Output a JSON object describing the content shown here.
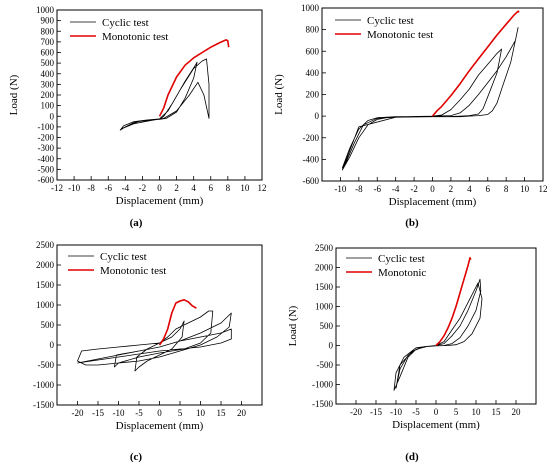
{
  "chart_data": [
    {
      "type": "line",
      "panel_label": "(a)",
      "xlabel": "Displacement (mm)",
      "ylabel": "Load (N)",
      "xlim": [
        -12,
        12
      ],
      "ylim": [
        -600,
        1000
      ],
      "xticks": [
        -12,
        -10,
        -8,
        -6,
        -4,
        -2,
        0,
        2,
        4,
        6,
        8,
        10,
        12
      ],
      "yticks": [
        -600,
        -500,
        -400,
        -300,
        -200,
        -100,
        0,
        100,
        200,
        300,
        400,
        500,
        600,
        700,
        800,
        900,
        1000
      ],
      "legend_position": "top-left",
      "series": [
        {
          "name": "Cyclic test",
          "color": "#000000",
          "width": 0.8,
          "x": [
            -4.5,
            -3.0,
            -2.0,
            -1.0,
            0.0,
            0.5,
            1.5,
            3.0,
            4.2,
            4.4,
            4.0,
            3.0,
            2.0,
            0.8,
            0.0,
            -1.0,
            -2.5,
            -4.0,
            -4.6,
            -4.2,
            -3.0,
            -1.5,
            0.0,
            1.0,
            2.5,
            4.0,
            5.0,
            5.5,
            5.8,
            5.8,
            5.2,
            4.5,
            3.5,
            2.0,
            0.5,
            -1.0,
            -3.0,
            -4.5
          ],
          "y": [
            -120,
            -60,
            -40,
            -35,
            -30,
            0,
            120,
            330,
            480,
            510,
            360,
            170,
            40,
            -20,
            -30,
            -35,
            -50,
            -100,
            -130,
            -90,
            -50,
            -35,
            -25,
            50,
            260,
            450,
            520,
            540,
            300,
            -20,
            200,
            320,
            200,
            50,
            -20,
            -40,
            -70,
            -120
          ]
        },
        {
          "name": "Monotonic test",
          "color": "#e00000",
          "width": 1.6,
          "x": [
            0.0,
            0.5,
            1.0,
            2.0,
            3.0,
            4.0,
            5.0,
            6.0,
            7.0,
            7.8,
            8.0,
            8.1
          ],
          "y": [
            0,
            80,
            200,
            370,
            480,
            550,
            600,
            650,
            690,
            720,
            710,
            650
          ]
        }
      ]
    },
    {
      "type": "line",
      "panel_label": "(b)",
      "xlabel": "Displacement (mm)",
      "ylabel": "Load (N)",
      "xlim": [
        -12,
        12
      ],
      "ylim": [
        -600,
        1000
      ],
      "xticks": [
        -10,
        -8,
        -6,
        -4,
        -2,
        0,
        2,
        4,
        6,
        8,
        10,
        12
      ],
      "yticks": [
        -600,
        -400,
        -200,
        0,
        200,
        400,
        600,
        800,
        1000
      ],
      "legend_position": "top-left",
      "series": [
        {
          "name": "Cyclic test",
          "color": "#000000",
          "width": 0.8,
          "x": [
            -9.8,
            -9.0,
            -8.0,
            -7.0,
            -6.0,
            -5.0,
            -3.0,
            0.0,
            2.0,
            3.0,
            4.0,
            5.0,
            6.0,
            7.0,
            8.0,
            9.0,
            9.3,
            9.2,
            8.5,
            7.5,
            7.0,
            6.5,
            6.0,
            5.0,
            4.0,
            3.0,
            2.0,
            0.0,
            -2.0,
            -4.0,
            -6.0,
            -7.5,
            -8.5,
            -9.5,
            -9.8,
            -9.0,
            -8.0,
            -7.0,
            -6.0,
            -4.0,
            -2.0,
            0.0,
            1.0,
            2.0,
            3.0,
            4.0,
            5.0,
            6.0,
            7.0,
            7.5,
            7.0,
            6.0,
            5.5,
            5.0,
            4.0,
            3.0,
            1.5,
            0.0,
            -4.0,
            -8.0,
            -9.8
          ],
          "y": [
            -500,
            -380,
            -200,
            -80,
            -30,
            -15,
            -5,
            0,
            5,
            30,
            100,
            200,
            310,
            420,
            550,
            700,
            820,
            780,
            500,
            250,
            120,
            50,
            15,
            5,
            0,
            -5,
            -5,
            -5,
            -5,
            -10,
            -20,
            -80,
            -250,
            -450,
            -480,
            -300,
            -120,
            -40,
            -15,
            -5,
            -5,
            0,
            10,
            60,
            150,
            250,
            380,
            480,
            580,
            620,
            400,
            180,
            70,
            20,
            5,
            0,
            -5,
            -5,
            -10,
            -100,
            -500
          ]
        },
        {
          "name": "Monotonic test",
          "color": "#e00000",
          "width": 1.6,
          "x": [
            0.0,
            0.5,
            1.0,
            2.0,
            3.0,
            4.0,
            5.0,
            6.0,
            7.0,
            8.0,
            8.8,
            9.3,
            9.4
          ],
          "y": [
            0,
            50,
            90,
            190,
            300,
            420,
            530,
            640,
            750,
            850,
            930,
            970,
            960
          ]
        }
      ]
    },
    {
      "type": "line",
      "panel_label": "(c)",
      "xlabel": "Displacement (mm)",
      "ylabel": "",
      "xlim": [
        -25,
        25
      ],
      "ylim": [
        -1500,
        2500
      ],
      "xticks": [
        -20,
        -15,
        -10,
        -5,
        0,
        5,
        10,
        15,
        20
      ],
      "yticks": [
        -1500,
        -1000,
        -500,
        0,
        500,
        1000,
        1500,
        2000,
        2500
      ],
      "legend_position": "top-left",
      "series": [
        {
          "name": "Cyclic test",
          "color": "#000000",
          "width": 0.8,
          "x": [
            -20.0,
            -15.0,
            -10.0,
            -5.0,
            0.0,
            5.0,
            10.0,
            15.0,
            17.5,
            17.0,
            14.0,
            10.0,
            5.0,
            0.0,
            -5.0,
            -10.0,
            -15.0,
            -18.0,
            -20.0,
            -19.0,
            -15.0,
            -10.0,
            -5.0,
            0.0,
            3.0,
            5.0,
            6.0,
            5.5,
            3.0,
            0.0,
            -3.0,
            -5.0,
            -6.0,
            -5.5,
            -3.0,
            0.0,
            2.0,
            4.0,
            7.0,
            10.0,
            12.0,
            13.0,
            12.5,
            10.0,
            6.0,
            0.0,
            -5.0,
            -10.0,
            -11.0,
            -10.5,
            -5.0,
            0.0,
            5.0,
            10.0,
            15.0,
            17.5,
            17.5,
            15.0,
            10.0,
            5.0,
            0.0,
            -10.0,
            -20.0
          ],
          "y": [
            -450,
            -350,
            -250,
            -150,
            -50,
            100,
            300,
            550,
            800,
            450,
            200,
            0,
            -150,
            -300,
            -400,
            -450,
            -500,
            -500,
            -400,
            -150,
            -100,
            -50,
            0,
            50,
            200,
            400,
            600,
            200,
            -100,
            -250,
            -400,
            -550,
            -650,
            -300,
            -100,
            50,
            200,
            400,
            550,
            700,
            850,
            850,
            300,
            50,
            -100,
            -200,
            -300,
            -450,
            -550,
            -250,
            -150,
            -50,
            100,
            200,
            300,
            400,
            150,
            50,
            -50,
            -100,
            -150,
            -300,
            -450
          ]
        },
        {
          "name": "Monotonic test",
          "color": "#e00000",
          "width": 1.6,
          "x": [
            0.0,
            1.0,
            2.0,
            3.0,
            4.0,
            5.0,
            6.0,
            7.0,
            8.0,
            9.0
          ],
          "y": [
            0,
            150,
            400,
            800,
            1050,
            1100,
            1130,
            1080,
            980,
            920
          ]
        }
      ]
    },
    {
      "type": "line",
      "panel_label": "(d)",
      "xlabel": "Displacement (mm)",
      "ylabel": "Load (N)",
      "xlim": [
        -25,
        25
      ],
      "ylim": [
        -1500,
        2500
      ],
      "xticks": [
        -20,
        -15,
        -10,
        -5,
        0,
        5,
        10,
        15,
        20
      ],
      "yticks": [
        -1500,
        -1000,
        -500,
        0,
        500,
        1000,
        1500,
        2000,
        2500
      ],
      "legend_position": "top-left",
      "series": [
        {
          "name": "Cyclic test",
          "color": "#000000",
          "width": 0.8,
          "x": [
            -10.0,
            -9.0,
            -7.0,
            -5.0,
            -3.0,
            0.0,
            2.0,
            4.0,
            6.0,
            8.0,
            10.0,
            11.0,
            11.2,
            10.0,
            8.0,
            6.0,
            4.0,
            2.0,
            0.0,
            -2.0,
            -5.0,
            -8.0,
            -10.0,
            -10.5,
            -9.0,
            -7.0,
            -5.0,
            -2.0,
            0.0,
            2.0,
            4.0,
            6.0,
            8.0,
            10.5,
            11.5,
            11.0,
            9.0,
            7.0,
            5.0,
            3.0,
            0.0,
            -3.0,
            -6.0,
            -9.0,
            -10.0
          ],
          "y": [
            -1100,
            -600,
            -250,
            -100,
            -30,
            0,
            50,
            250,
            500,
            900,
            1400,
            1700,
            1400,
            900,
            500,
            200,
            50,
            0,
            -10,
            -20,
            -60,
            -300,
            -700,
            -1150,
            -800,
            -300,
            -100,
            -20,
            0,
            100,
            400,
            700,
            1100,
            1600,
            1200,
            700,
            300,
            100,
            20,
            0,
            -10,
            -30,
            -150,
            -500,
            -1100
          ]
        },
        {
          "name": "Monotonic",
          "color": "#e00000",
          "width": 1.6,
          "x": [
            0.0,
            1.0,
            2.0,
            3.0,
            4.0,
            5.0,
            6.0,
            7.0,
            8.0,
            8.5,
            8.7
          ],
          "y": [
            0,
            100,
            250,
            450,
            700,
            1000,
            1350,
            1700,
            2050,
            2250,
            2200
          ]
        }
      ]
    }
  ]
}
